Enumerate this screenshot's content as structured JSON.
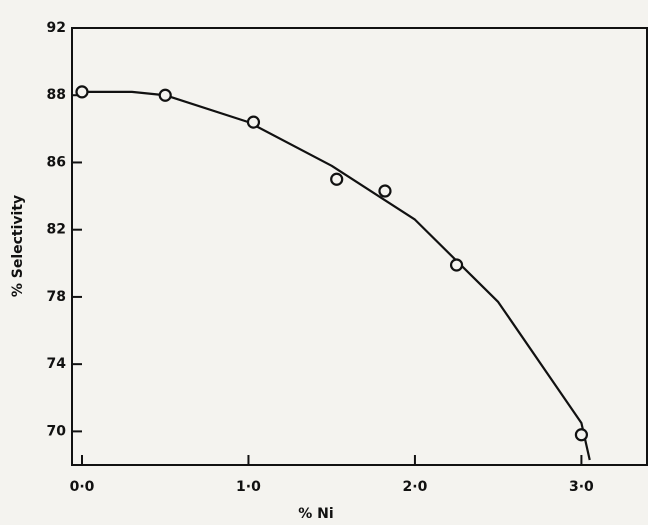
{
  "chart_data": {
    "type": "scatter",
    "x_label": "% Ni",
    "y_label": "% Selectivity",
    "series": [
      {
        "type": "scatter",
        "color": "#111111",
        "x": [
          0.0,
          0.5,
          1.03,
          1.53,
          1.82,
          2.25,
          3.0
        ],
        "values": [
          88.2,
          88.0,
          87.2,
          85.0,
          84.3,
          79.9,
          69.8
        ]
      },
      {
        "type": "line",
        "color": "#111111",
        "x": [
          0.0,
          0.3,
          0.5,
          1.0,
          1.5,
          2.0,
          2.5,
          3.0,
          3.05
        ],
        "values": [
          88.2,
          88.2,
          88.0,
          87.2,
          85.8,
          82.6,
          77.7,
          70.5,
          68.3
        ]
      }
    ],
    "xlim": [
      -0.06,
      3.4
    ],
    "xticks": [
      {
        "value": 0,
        "label": "0·0"
      },
      {
        "value": 1,
        "label": "1·0"
      },
      {
        "value": 2,
        "label": "2·0"
      },
      {
        "value": 3,
        "label": "3·0"
      }
    ],
    "ylim": [
      68,
      92
    ],
    "yticks": [
      70,
      74,
      78,
      82,
      86,
      88,
      92
    ]
  }
}
